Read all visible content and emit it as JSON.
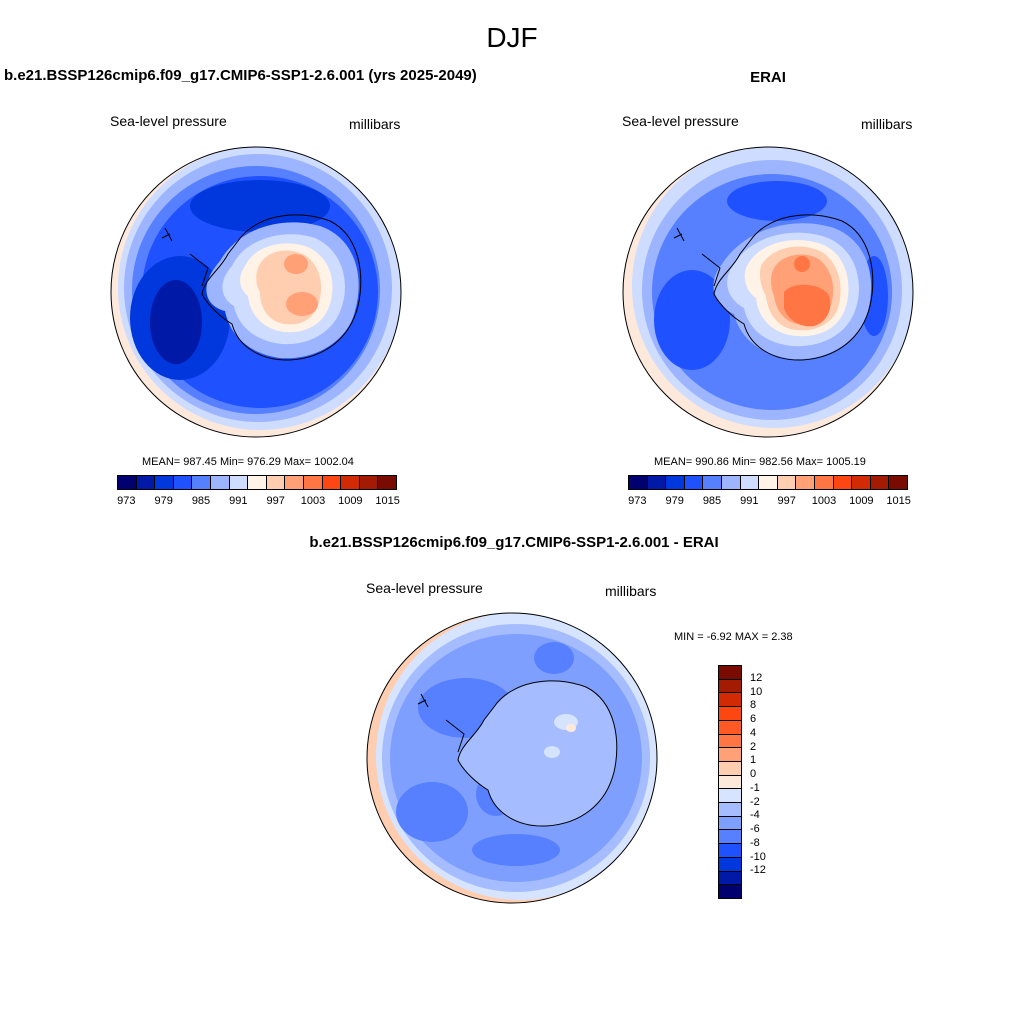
{
  "season": "DJF",
  "panels": [
    {
      "title": "b.e21.BSSP126cmip6.f09_g17.CMIP6-SSP1-2.6.001 (yrs 2025-2049)",
      "variable": "Sea-level pressure",
      "units": "millibars",
      "stats": "MEAN= 987.45  Min= 976.29  Max= 1002.04",
      "colorbar": {
        "tick_labels": [
          "973",
          "979",
          "985",
          "991",
          "997",
          "1003",
          "1009",
          "1015"
        ],
        "colors": [
          "#00006e",
          "#0019a6",
          "#0038dd",
          "#2051ff",
          "#5680ff",
          "#9db5ff",
          "#cedcff",
          "#fff2e6",
          "#ffcdb0",
          "#ffa077",
          "#ff7543",
          "#fd4713",
          "#d12a05",
          "#a31b02",
          "#7a0b00"
        ]
      }
    },
    {
      "title": "ERAI",
      "variable": "Sea-level pressure",
      "units": "millibars",
      "stats": "MEAN= 990.86  Min= 982.56  Max= 1005.19",
      "colorbar": {
        "tick_labels": [
          "973",
          "979",
          "985",
          "991",
          "997",
          "1003",
          "1009",
          "1015"
        ],
        "colors": [
          "#00006e",
          "#0019a6",
          "#0038dd",
          "#2051ff",
          "#5680ff",
          "#9db5ff",
          "#cedcff",
          "#fff2e6",
          "#ffcdb0",
          "#ffa077",
          "#ff7543",
          "#fd4713",
          "#d12a05",
          "#a31b02",
          "#7a0b00"
        ]
      }
    },
    {
      "title": "b.e21.BSSP126cmip6.f09_g17.CMIP6-SSP1-2.6.001 - ERAI",
      "variable": "Sea-level pressure",
      "units": "millibars",
      "stats": "MIN =  -6.92 MAX =   2.38",
      "colorbar": {
        "tick_labels": [
          "12",
          "10",
          "8",
          "6",
          "4",
          "2",
          "1",
          "0",
          "-1",
          "-2",
          "-4",
          "-6",
          "-8",
          "-10",
          "-12"
        ],
        "colors": [
          "#7a0b00",
          "#a31b02",
          "#d12a05",
          "#fd4713",
          "#ff5a26",
          "#ff7543",
          "#ffa077",
          "#ffcdb0",
          "#fde8dc",
          "#d6e4ff",
          "#a5bdff",
          "#7f9fff",
          "#5680ff",
          "#2051ff",
          "#0038dd",
          "#0019a6",
          "#00006e"
        ]
      }
    }
  ]
}
